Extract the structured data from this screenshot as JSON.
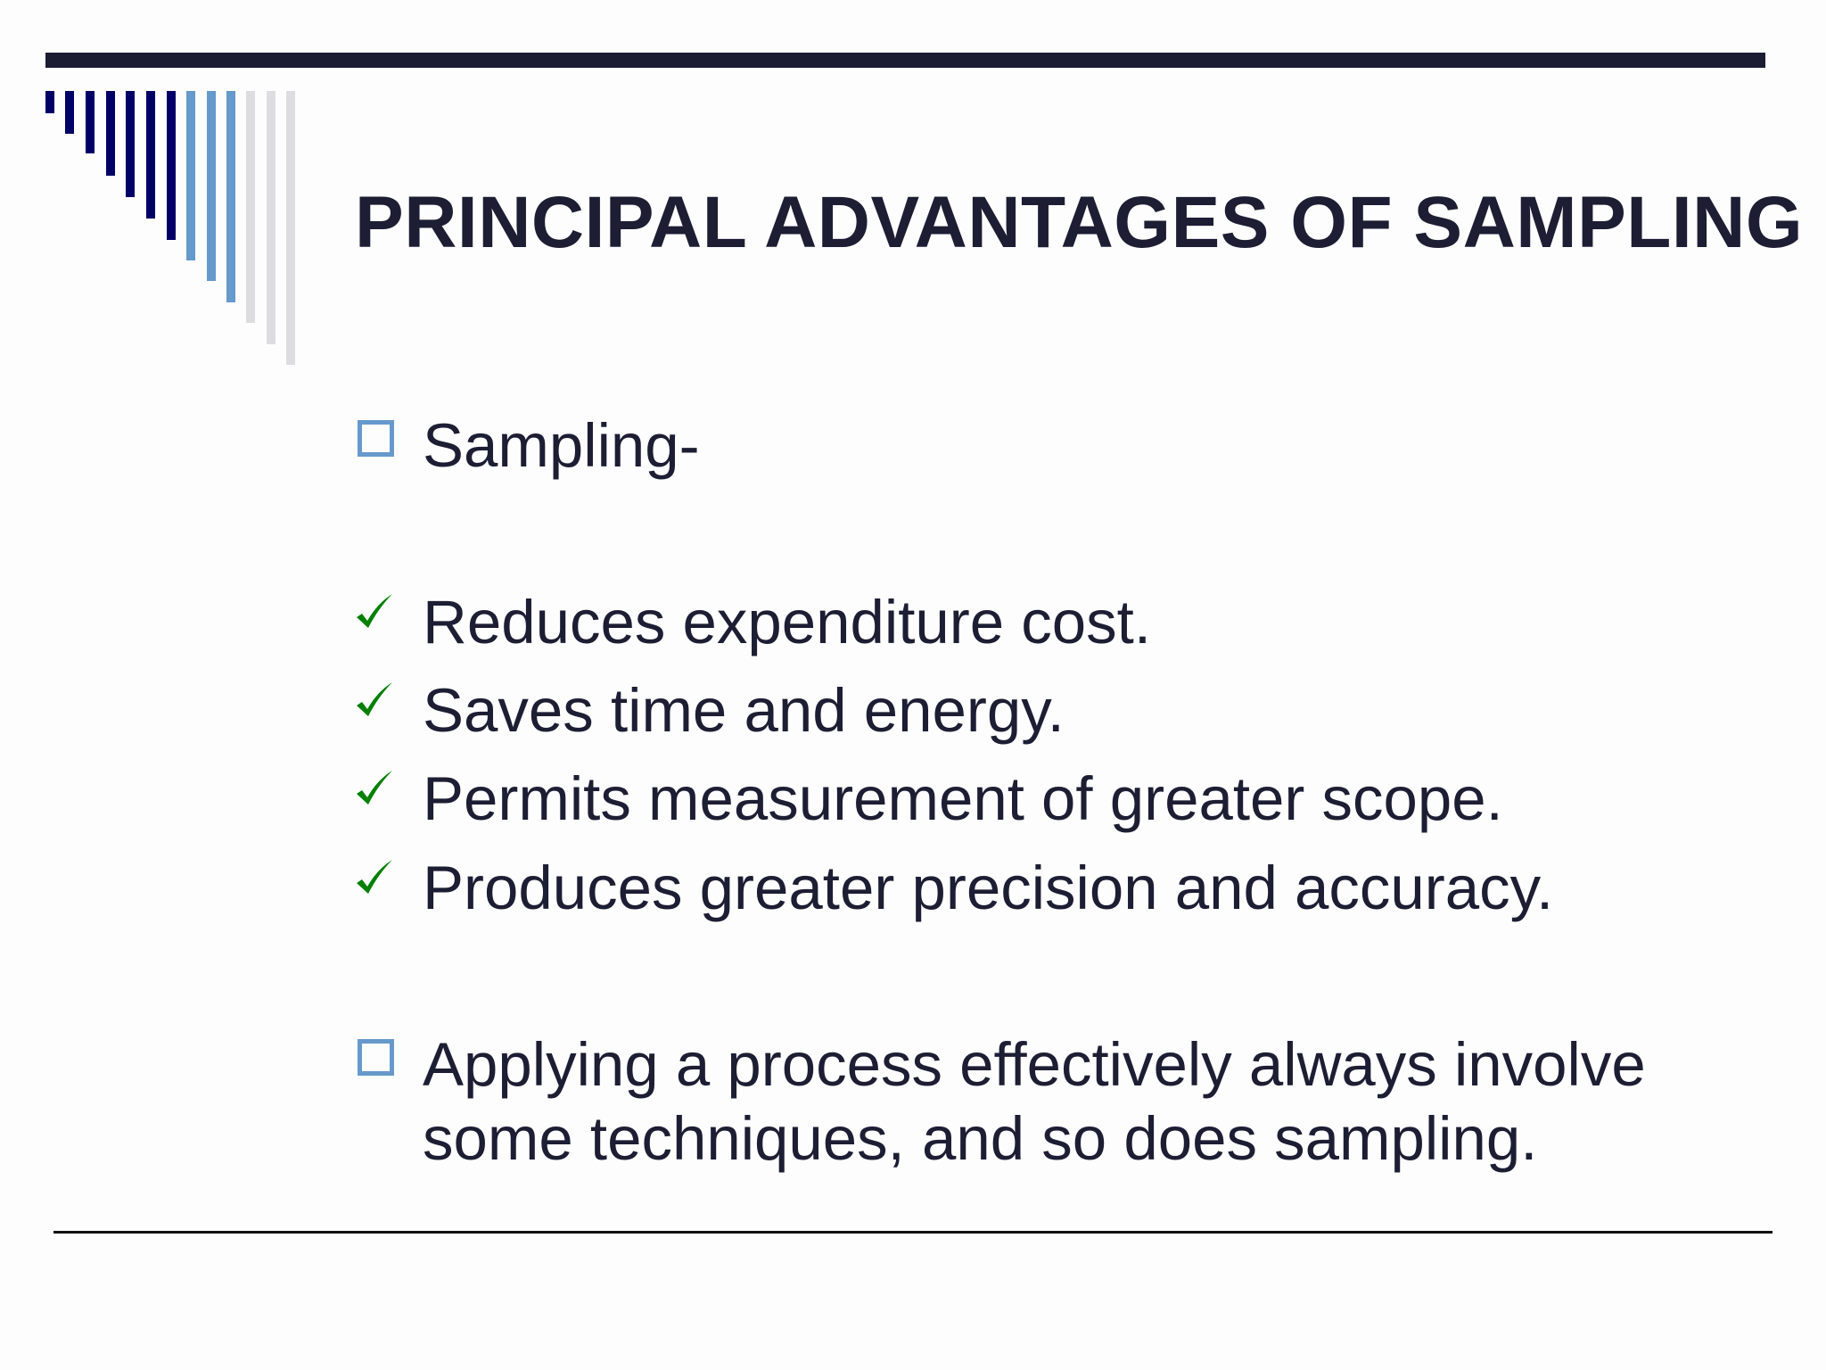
{
  "slide": {
    "title": "PRINCIPAL ADVANTAGES OF SAMPLING",
    "bullets": [
      {
        "icon": "square-bullet-icon",
        "text": "Sampling-"
      },
      {
        "icon": "checkmark-icon",
        "text": "Reduces expenditure cost."
      },
      {
        "icon": "checkmark-icon",
        "text": "Saves time and energy."
      },
      {
        "icon": "checkmark-icon",
        "text": "Permits measurement of greater scope."
      },
      {
        "icon": "checkmark-icon",
        "text": "Produces greater precision and accuracy."
      },
      {
        "icon": "square-bullet-icon",
        "lines": [
          "Applying a process effectively always involve",
          "some techniques, and so does sampling."
        ]
      }
    ]
  },
  "colors": {
    "text": "#1d1d33",
    "dark_navy": "#000066",
    "light_blue": "#6699cc",
    "light_gray": "#dddde0",
    "check_green": "#008000"
  }
}
